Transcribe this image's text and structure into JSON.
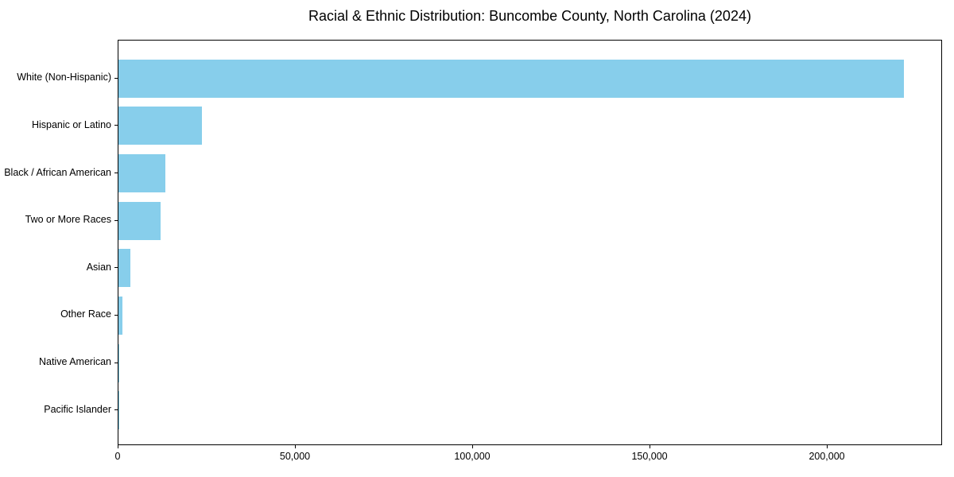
{
  "chart_data": {
    "type": "bar",
    "orientation": "horizontal",
    "title": "Racial & Ethnic Distribution: Buncombe County, North Carolina (2024)",
    "xlabel": "",
    "ylabel": "",
    "categories": [
      "White (Non-Hispanic)",
      "Hispanic or Latino",
      "Black / African American",
      "Two or More Races",
      "Asian",
      "Other Race",
      "Native American",
      "Pacific Islander"
    ],
    "values": [
      221500,
      23500,
      13200,
      11900,
      3300,
      1200,
      250,
      50
    ],
    "xlim": [
      0,
      232500
    ],
    "x_ticks": [
      0,
      50000,
      100000,
      150000,
      200000
    ],
    "x_tick_labels": [
      "0",
      "50,000",
      "100,000",
      "150,000",
      "200,000"
    ],
    "bar_color": "#87CEEB",
    "text_color": "#000000",
    "grid": false,
    "legend": false
  }
}
